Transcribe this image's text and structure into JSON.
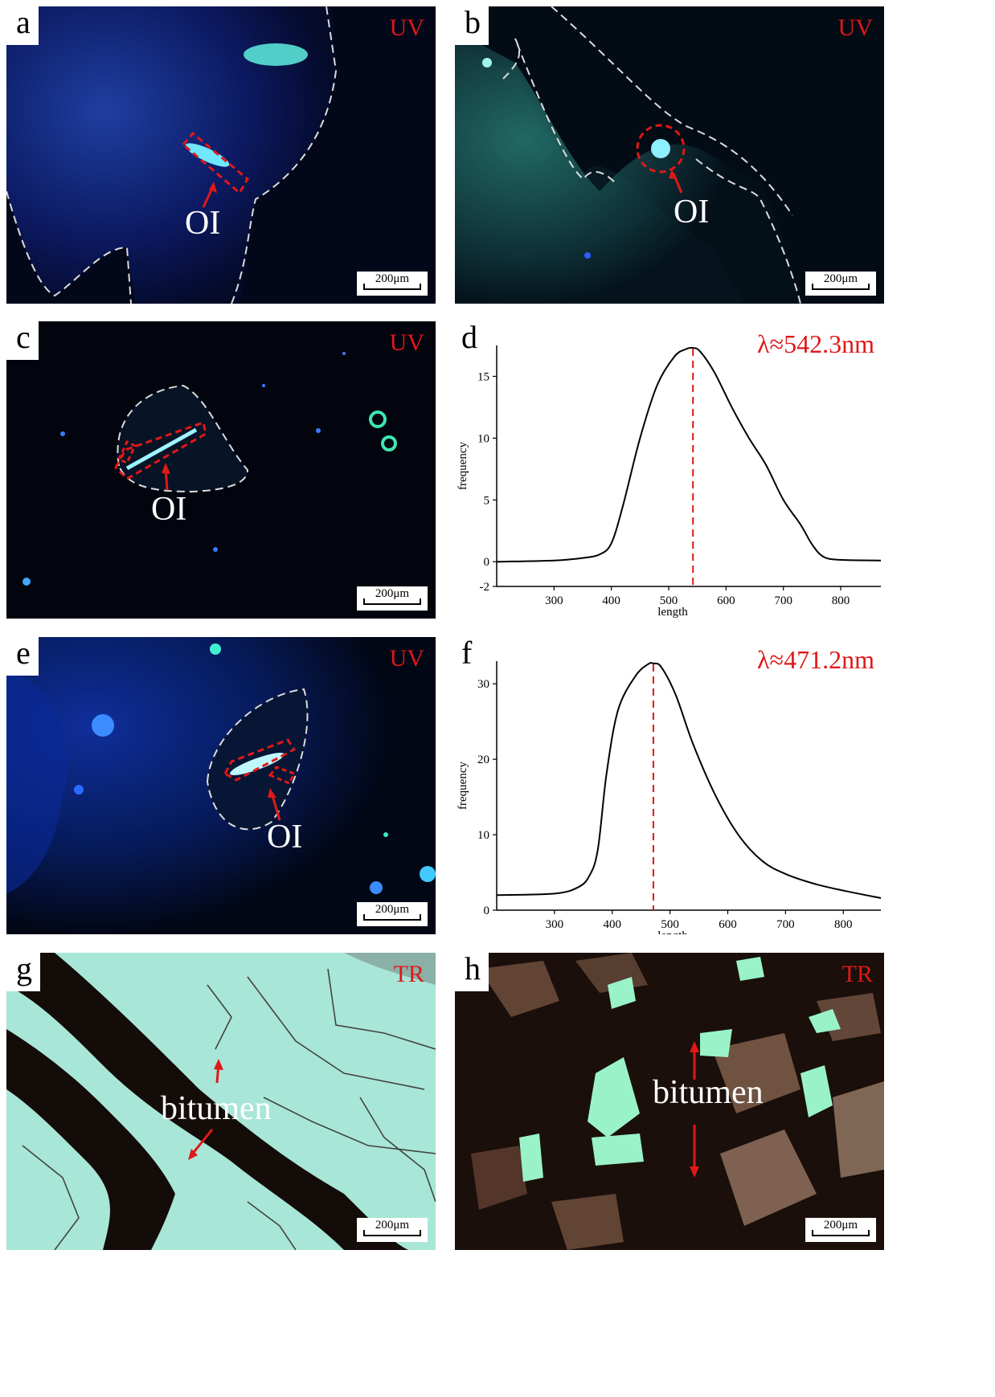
{
  "figure": {
    "panels": {
      "a": {
        "letter": "a",
        "mode": "UV",
        "callout": "OI",
        "scale": "200μm"
      },
      "b": {
        "letter": "b",
        "mode": "UV",
        "callout": "OI",
        "scale": "200μm"
      },
      "c": {
        "letter": "c",
        "mode": "UV",
        "callout": "OI",
        "scale": "200μm"
      },
      "d": {
        "letter": "d",
        "peak_label": "λ≈542.3nm"
      },
      "e": {
        "letter": "e",
        "mode": "UV",
        "callout": "OI",
        "scale": "200μm"
      },
      "f": {
        "letter": "f",
        "peak_label": "λ≈471.2nm"
      },
      "g": {
        "letter": "g",
        "mode": "TR",
        "callout": "bitumen",
        "scale": "200μm"
      },
      "h": {
        "letter": "h",
        "mode": "TR",
        "callout": "bitumen",
        "scale": "200μm"
      }
    },
    "colors": {
      "annotation_red": "#e01818",
      "uv_background": "#02081a",
      "uv_fluorescence": "#4fe0d0",
      "tr_light": "#a8e6d8",
      "tr_dark": "#1a0f0a"
    }
  },
  "chart_data": [
    {
      "type": "line",
      "panel": "d",
      "xlabel": "length",
      "ylabel": "frequency",
      "xlim": [
        200,
        870
      ],
      "ylim": [
        -2,
        17.5
      ],
      "xticks": [
        300,
        400,
        500,
        600,
        700,
        800
      ],
      "yticks": [
        -2,
        0,
        5,
        10,
        15
      ],
      "peak_x": 542.3,
      "x": [
        200,
        300,
        350,
        380,
        400,
        420,
        450,
        480,
        510,
        530,
        542.3,
        555,
        580,
        610,
        640,
        670,
        700,
        730,
        750,
        770,
        800,
        870
      ],
      "y": [
        0,
        0.1,
        0.3,
        0.6,
        1.5,
        4.5,
        10.0,
        14.3,
        16.6,
        17.2,
        17.3,
        17.0,
        15.3,
        12.5,
        10.0,
        7.8,
        5.0,
        3.0,
        1.4,
        0.4,
        0.15,
        0.1
      ]
    },
    {
      "type": "line",
      "panel": "f",
      "xlabel": "length",
      "ylabel": "frequency",
      "xlim": [
        200,
        865
      ],
      "ylim": [
        0,
        33
      ],
      "xticks": [
        300,
        400,
        500,
        600,
        700,
        800
      ],
      "yticks": [
        0,
        10,
        20,
        30
      ],
      "peak_x": 471.2,
      "x": [
        200,
        300,
        340,
        360,
        375,
        390,
        410,
        440,
        462,
        471.2,
        485,
        510,
        540,
        580,
        620,
        660,
        700,
        750,
        800,
        865
      ],
      "y": [
        2.0,
        2.2,
        3.0,
        4.5,
        8.0,
        18.0,
        26.5,
        31.0,
        32.6,
        32.7,
        32.2,
        28.5,
        22.0,
        15.0,
        9.8,
        6.5,
        4.8,
        3.5,
        2.6,
        1.6
      ]
    }
  ]
}
